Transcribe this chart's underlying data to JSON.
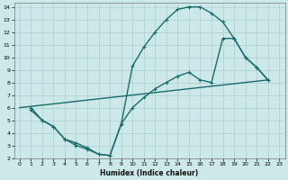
{
  "xlabel": "Humidex (Indice chaleur)",
  "bg_color": "#cce8e8",
  "line_color": "#1a6b6b",
  "grid_color": "#aacfcf",
  "xlim": [
    -0.5,
    23.5
  ],
  "ylim": [
    2,
    14.3
  ],
  "xticks": [
    0,
    1,
    2,
    3,
    4,
    5,
    6,
    7,
    8,
    9,
    10,
    11,
    12,
    13,
    14,
    15,
    16,
    17,
    18,
    19,
    20,
    21,
    22,
    23
  ],
  "yticks": [
    2,
    3,
    4,
    5,
    6,
    7,
    8,
    9,
    10,
    11,
    12,
    13,
    14
  ],
  "line1_x": [
    1,
    2,
    3,
    4,
    5,
    6,
    7,
    8,
    9,
    10,
    11,
    12,
    13,
    14,
    15,
    16,
    17,
    18,
    19,
    20,
    21,
    22
  ],
  "line1_y": [
    6.0,
    5.0,
    4.5,
    3.5,
    3.2,
    2.8,
    2.3,
    2.2,
    4.7,
    9.3,
    10.8,
    12.0,
    13.0,
    13.8,
    14.0,
    14.0,
    13.5,
    12.8,
    11.5,
    10.0,
    9.2,
    8.2
  ],
  "line2_x": [
    1,
    2,
    3,
    4,
    5,
    6,
    7,
    8,
    9,
    10,
    11,
    12,
    13,
    14,
    15,
    16,
    17,
    18,
    19,
    20,
    21,
    22
  ],
  "line2_y": [
    5.8,
    5.0,
    4.5,
    3.5,
    3.0,
    2.7,
    2.3,
    2.2,
    4.7,
    6.0,
    6.8,
    7.5,
    8.0,
    8.5,
    8.8,
    8.2,
    8.0,
    11.5,
    11.5,
    10.0,
    9.2,
    8.2
  ],
  "line3_x": [
    0,
    22
  ],
  "line3_y": [
    6.0,
    8.2
  ],
  "marker_size": 3.5,
  "linewidth": 1.0
}
